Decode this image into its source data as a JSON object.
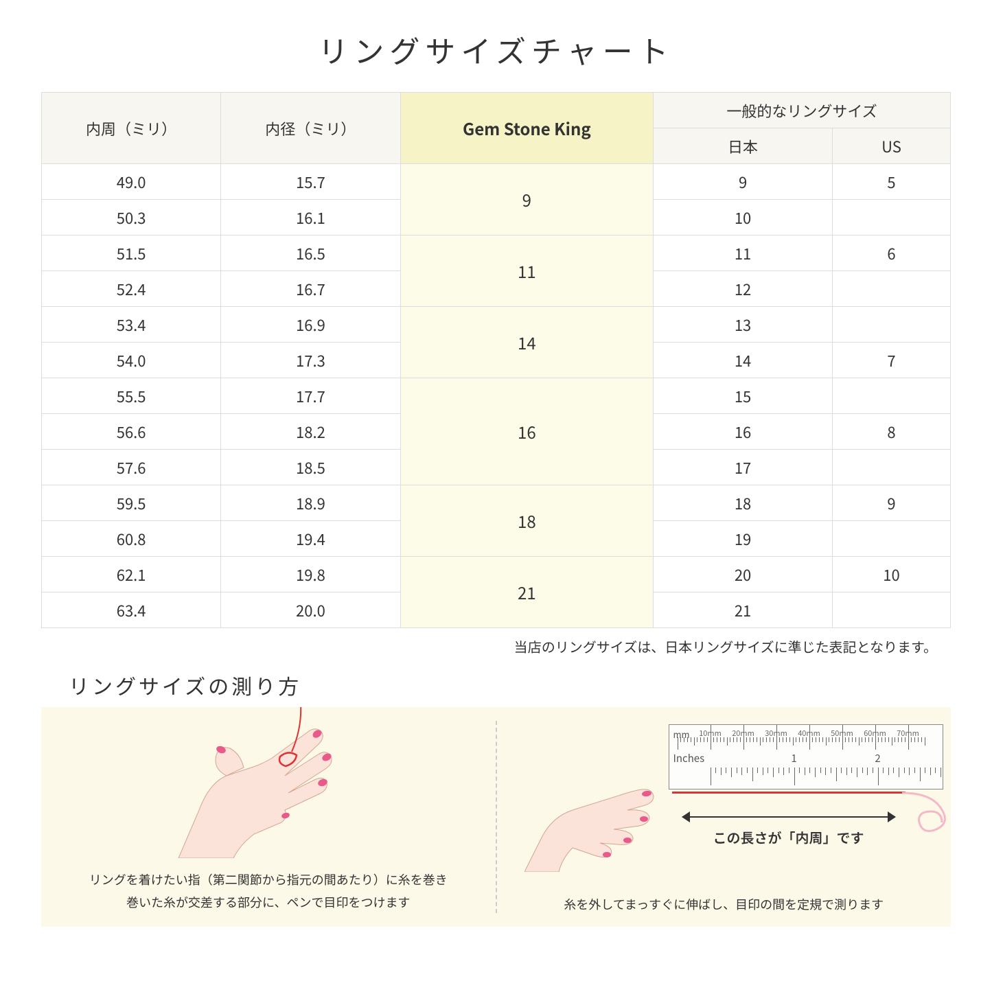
{
  "title": "リングサイズチャート",
  "headers": {
    "circumference": "内周（ミリ）",
    "diameter": "内径（ミリ）",
    "gsk": "Gem Stone King",
    "general": "一般的なリングサイズ",
    "japan": "日本",
    "us": "US"
  },
  "colors": {
    "header_bg": "#f7f6f1",
    "gsk_header_bg": "#f6f3c6",
    "gsk_cell_bg": "#fdfce9",
    "border": "#dddddd",
    "howto_bg": "#fcf9e8",
    "thread": "#d33333",
    "skin": "#fce3d9",
    "nail": "#e85a8a"
  },
  "rows": [
    {
      "circ": "49.0",
      "dia": "15.7",
      "gsk": "9",
      "gsk_span": 2,
      "jp": "9",
      "us": "5"
    },
    {
      "circ": "50.3",
      "dia": "16.1",
      "jp": "10",
      "us": ""
    },
    {
      "circ": "51.5",
      "dia": "16.5",
      "gsk": "11",
      "gsk_span": 2,
      "jp": "11",
      "us": "6"
    },
    {
      "circ": "52.4",
      "dia": "16.7",
      "jp": "12",
      "us": ""
    },
    {
      "circ": "53.4",
      "dia": "16.9",
      "gsk": "14",
      "gsk_span": 2,
      "jp": "13",
      "us": ""
    },
    {
      "circ": "54.0",
      "dia": "17.3",
      "jp": "14",
      "us": "7"
    },
    {
      "circ": "55.5",
      "dia": "17.7",
      "gsk": "16",
      "gsk_span": 3,
      "jp": "15",
      "us": ""
    },
    {
      "circ": "56.6",
      "dia": "18.2",
      "jp": "16",
      "us": "8"
    },
    {
      "circ": "57.6",
      "dia": "18.5",
      "jp": "17",
      "us": ""
    },
    {
      "circ": "59.5",
      "dia": "18.9",
      "gsk": "18",
      "gsk_span": 2,
      "jp": "18",
      "us": "9"
    },
    {
      "circ": "60.8",
      "dia": "19.4",
      "jp": "19",
      "us": ""
    },
    {
      "circ": "62.1",
      "dia": "19.8",
      "gsk": "21",
      "gsk_span": 2,
      "jp": "20",
      "us": "10"
    },
    {
      "circ": "63.4",
      "dia": "20.0",
      "jp": "21",
      "us": ""
    }
  ],
  "note": "当店のリングサイズは、日本リングサイズに準じた表記となります。",
  "howto": {
    "title": "リングサイズの測り方",
    "left_caption_1": "リングを着けたい指（第二関節から指元の間あたり）に糸を巻き",
    "left_caption_2": "巻いた糸が交差する部分に、ペンで目印をつけます",
    "right_arrow_label": "この長さが「内周」です",
    "right_caption": "糸を外してまっすぐに伸ばし、目印の間を定規で測ります",
    "ruler": {
      "mm_label": "mm",
      "in_label": "Inches",
      "mm_marks": [
        "10mm",
        "20mm",
        "30mm",
        "40mm",
        "50mm",
        "60mm",
        "70mm"
      ],
      "in_marks": [
        "1",
        "2"
      ]
    }
  }
}
